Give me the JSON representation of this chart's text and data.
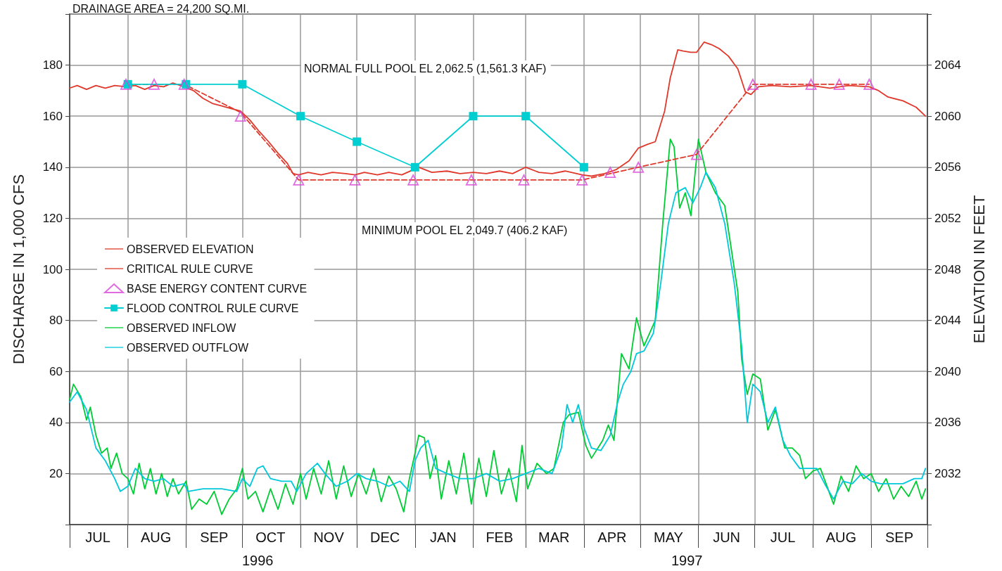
{
  "chart_data": {
    "type": "line",
    "ylabel": "DISCHARGE IN 1,000 CFS",
    "y2label": "ELEVATION IN FEET",
    "annotations": [
      "DRAINAGE AREA = 24,200 SQ.MI.",
      "NORMAL FULL POOL EL 2,062.5 (1,561.3 KAF)",
      "MINIMUM POOL EL 2,049.7 (406.2 KAF)",
      "1996",
      "1997"
    ],
    "xlim": [
      "1996-07-01",
      "1997-10-01"
    ],
    "xticks": [
      {
        "value": "1996-07-01",
        "label": null
      },
      {
        "value": "1996-07-16",
        "label": "JUL"
      },
      {
        "value": "1996-08-01",
        "label": null
      },
      {
        "value": "1996-08-16",
        "label": "AUG"
      },
      {
        "value": "1996-09-01",
        "label": null
      },
      {
        "value": "1996-09-16",
        "label": "SEP"
      },
      {
        "value": "1996-10-01",
        "label": null
      },
      {
        "value": "1996-10-16",
        "label": "OCT"
      },
      {
        "value": "1996-11-01",
        "label": null
      },
      {
        "value": "1996-11-16",
        "label": "NOV"
      },
      {
        "value": "1996-12-01",
        "label": null
      },
      {
        "value": "1996-12-16",
        "label": "DEC"
      },
      {
        "value": "1997-01-01",
        "label": null
      },
      {
        "value": "1997-01-16",
        "label": "JAN"
      },
      {
        "value": "1997-02-01",
        "label": null
      },
      {
        "value": "1997-02-15",
        "label": "FEB"
      },
      {
        "value": "1997-03-01",
        "label": null
      },
      {
        "value": "1997-03-16",
        "label": "MAR"
      },
      {
        "value": "1997-04-01",
        "label": null
      },
      {
        "value": "1997-04-16",
        "label": "APR"
      },
      {
        "value": "1997-05-01",
        "label": null
      },
      {
        "value": "1997-05-16",
        "label": "MAY"
      },
      {
        "value": "1997-06-01",
        "label": null
      },
      {
        "value": "1997-06-16",
        "label": "JUN"
      },
      {
        "value": "1997-07-01",
        "label": null
      },
      {
        "value": "1997-07-16",
        "label": "JUL"
      },
      {
        "value": "1997-08-01",
        "label": null
      },
      {
        "value": "1997-08-16",
        "label": "AUG"
      },
      {
        "value": "1997-09-01",
        "label": null
      },
      {
        "value": "1997-09-16",
        "label": "SEP"
      },
      {
        "value": "1997-10-01",
        "label": null
      }
    ],
    "ylim": [
      0,
      200
    ],
    "yticks": [
      {
        "value": 0,
        "label": null
      },
      20,
      40,
      60,
      80,
      100,
      120,
      140,
      160,
      180,
      {
        "value": 200,
        "label": null
      }
    ],
    "y2lim": [
      2028,
      2068
    ],
    "y2ticks": [
      {
        "value": 2028,
        "label": null
      },
      2032,
      2036,
      2040,
      2044,
      2048,
      2052,
      2056,
      2060,
      2064,
      {
        "value": 2068,
        "label": null
      }
    ],
    "grid": true,
    "legend": "left",
    "series": [
      {
        "name": "OBSERVED ELEVATION",
        "type": "line",
        "axis": "y2",
        "color": "#e0382b",
        "line_style": "solid",
        "marker": "none",
        "x": [
          "1996-07-01",
          "1996-07-05",
          "1996-07-10",
          "1996-07-15",
          "1996-07-20",
          "1996-07-25",
          "1996-07-31",
          "1996-08-05",
          "1996-08-10",
          "1996-08-15",
          "1996-08-20",
          "1996-08-25",
          "1996-08-31",
          "1996-09-05",
          "1996-09-10",
          "1996-09-15",
          "1996-09-20",
          "1996-09-25",
          "1996-09-30",
          "1996-10-05",
          "1996-10-10",
          "1996-10-15",
          "1996-10-20",
          "1996-10-25",
          "1996-10-28",
          "1996-10-31",
          "1996-11-05",
          "1996-11-12",
          "1996-11-18",
          "1996-11-25",
          "1996-11-30",
          "1996-12-05",
          "1996-12-12",
          "1996-12-18",
          "1996-12-25",
          "1996-12-31",
          "1997-01-03",
          "1997-01-10",
          "1997-01-18",
          "1997-01-25",
          "1997-02-01",
          "1997-02-08",
          "1997-02-15",
          "1997-02-22",
          "1997-03-01",
          "1997-03-08",
          "1997-03-15",
          "1997-03-22",
          "1997-03-31",
          "1997-04-05",
          "1997-04-12",
          "1997-04-18",
          "1997-04-25",
          "1997-04-30",
          "1997-05-05",
          "1997-05-09",
          "1997-05-14",
          "1997-05-17",
          "1997-05-21",
          "1997-05-24",
          "1997-05-28",
          "1997-05-31",
          "1997-06-04",
          "1997-06-08",
          "1997-06-12",
          "1997-06-17",
          "1997-06-22",
          "1997-06-26",
          "1997-06-29",
          "1997-07-03",
          "1997-07-10",
          "1997-07-20",
          "1997-07-31",
          "1997-08-10",
          "1997-08-20",
          "1997-08-31",
          "1997-09-05",
          "1997-09-10",
          "1997-09-18",
          "1997-09-25",
          "1997-09-30"
        ],
        "values": [
          2062.2,
          2062.4,
          2062.1,
          2062.4,
          2062.2,
          2062.4,
          2062.3,
          2062.4,
          2062.1,
          2062.4,
          2062.3,
          2062.6,
          2062.3,
          2062.0,
          2061.4,
          2061.0,
          2060.8,
          2060.6,
          2060.4,
          2059.7,
          2058.8,
          2058.0,
          2057.1,
          2056.3,
          2055.5,
          2055.4,
          2055.6,
          2055.4,
          2055.6,
          2055.5,
          2055.4,
          2055.6,
          2055.4,
          2055.6,
          2055.4,
          2055.8,
          2056.0,
          2055.6,
          2055.7,
          2055.5,
          2055.6,
          2055.5,
          2055.7,
          2055.5,
          2056.0,
          2055.6,
          2055.5,
          2055.7,
          2055.4,
          2055.3,
          2055.5,
          2055.8,
          2056.5,
          2057.5,
          2057.8,
          2058.0,
          2060.4,
          2063.0,
          2065.2,
          2065.1,
          2065.0,
          2065.0,
          2065.8,
          2065.6,
          2065.3,
          2064.7,
          2063.7,
          2061.9,
          2061.7,
          2062.3,
          2062.4,
          2062.3,
          2062.4,
          2062.2,
          2062.4,
          2062.3,
          2062.0,
          2061.5,
          2061.2,
          2060.7,
          2060.0
        ]
      },
      {
        "name": "CRITICAL RULE CURVE",
        "type": "line",
        "axis": "y2",
        "color": "#e0382b",
        "line_style": "dashed",
        "marker": "none",
        "x": [
          "1996-08-01",
          "1996-08-31",
          "1996-09-30",
          "1996-10-31",
          "1997-03-31",
          "1997-04-30",
          "1997-05-31",
          "1997-06-30",
          "1997-08-31"
        ],
        "values": [
          2062.5,
          2062.5,
          2060.3,
          2055,
          2055,
          2056,
          2057,
          2062.5,
          2062.5
        ]
      },
      {
        "name": "BASE ENERGY CONTENT CURVE",
        "type": "scatter",
        "axis": "y2",
        "color": "#d845d8",
        "marker": "triangle",
        "x": [
          "1996-07-31",
          "1996-08-15",
          "1996-08-31",
          "1996-09-30",
          "1996-10-31",
          "1996-11-30",
          "1996-12-31",
          "1997-01-31",
          "1997-02-28",
          "1997-03-31",
          "1997-04-15",
          "1997-04-30",
          "1997-05-31",
          "1997-06-30",
          "1997-07-31",
          "1997-08-15",
          "1997-08-31"
        ],
        "values": [
          2062.5,
          2062.5,
          2062.5,
          2060,
          2055,
          2055,
          2055,
          2055,
          2055,
          2055,
          2055.6,
          2056,
          2057,
          2062.5,
          2062.5,
          2062.5,
          2062.5
        ]
      },
      {
        "name": "FLOOD CONTROL RULE CURVE",
        "type": "line",
        "axis": "y2",
        "color": "#00ced1",
        "line_style": "solid",
        "marker": "square",
        "x": [
          "1996-08-01",
          "1996-09-01",
          "1996-10-01",
          "1996-11-01",
          "1996-12-01",
          "1997-01-01",
          "1997-02-01",
          "1997-03-01",
          "1997-04-01"
        ],
        "values": [
          2062.5,
          2062.5,
          2062.5,
          2060,
          2058,
          2056,
          2060,
          2060,
          2056
        ]
      },
      {
        "name": "OBSERVED INFLOW",
        "type": "line",
        "color": "#00cc33",
        "line_style": "solid",
        "marker": "none",
        "x": [
          "1996-07-01",
          "1996-07-03",
          "1996-07-07",
          "1996-07-10",
          "1996-07-12",
          "1996-07-15",
          "1996-07-18",
          "1996-07-21",
          "1996-07-23",
          "1996-07-26",
          "1996-07-29",
          "1996-08-01",
          "1996-08-04",
          "1996-08-07",
          "1996-08-10",
          "1996-08-13",
          "1996-08-16",
          "1996-08-19",
          "1996-08-22",
          "1996-08-25",
          "1996-08-28",
          "1996-09-01",
          "1996-09-04",
          "1996-09-08",
          "1996-09-12",
          "1996-09-16",
          "1996-09-20",
          "1996-09-24",
          "1996-09-28",
          "1996-10-01",
          "1996-10-04",
          "1996-10-08",
          "1996-10-12",
          "1996-10-16",
          "1996-10-20",
          "1996-10-24",
          "1996-10-28",
          "1996-11-01",
          "1996-11-04",
          "1996-11-08",
          "1996-11-12",
          "1996-11-16",
          "1996-11-20",
          "1996-11-24",
          "1996-11-28",
          "1996-12-02",
          "1996-12-06",
          "1996-12-10",
          "1996-12-14",
          "1996-12-18",
          "1996-12-22",
          "1996-12-26",
          "1996-12-29",
          "1997-01-01",
          "1997-01-03",
          "1997-01-06",
          "1997-01-09",
          "1997-01-12",
          "1997-01-15",
          "1997-01-19",
          "1997-01-23",
          "1997-01-27",
          "1997-01-31",
          "1997-02-04",
          "1997-02-08",
          "1997-02-12",
          "1997-02-16",
          "1997-02-20",
          "1997-02-24",
          "1997-02-27",
          "1997-03-02",
          "1997-03-07",
          "1997-03-12",
          "1997-03-16",
          "1997-03-21",
          "1997-03-24",
          "1997-03-29",
          "1997-04-02",
          "1997-04-05",
          "1997-04-11",
          "1997-04-14",
          "1997-04-17",
          "1997-04-21",
          "1997-04-25",
          "1997-04-29",
          "1997-05-03",
          "1997-05-09",
          "1997-05-13",
          "1997-05-17",
          "1997-05-19",
          "1997-05-22",
          "1997-05-25",
          "1997-05-28",
          "1997-06-01",
          "1997-06-05",
          "1997-06-10",
          "1997-06-15",
          "1997-06-22",
          "1997-06-24",
          "1997-06-27",
          "1997-06-30",
          "1997-07-04",
          "1997-07-08",
          "1997-07-12",
          "1997-07-17",
          "1997-07-21",
          "1997-07-25",
          "1997-07-28",
          "1997-08-01",
          "1997-08-05",
          "1997-08-09",
          "1997-08-12",
          "1997-08-16",
          "1997-08-20",
          "1997-08-24",
          "1997-08-28",
          "1997-09-01",
          "1997-09-05",
          "1997-09-09",
          "1997-09-13",
          "1997-09-17",
          "1997-09-21",
          "1997-09-25",
          "1997-09-28",
          "1997-09-30"
        ],
        "values": [
          49,
          55,
          50,
          41,
          46,
          35,
          28,
          30,
          22,
          28,
          20,
          18,
          12,
          24,
          14,
          22,
          12,
          20,
          11,
          18,
          12,
          17,
          6,
          10,
          8,
          13,
          4,
          10,
          14,
          22,
          10,
          13,
          5,
          14,
          6,
          16,
          8,
          20,
          10,
          22,
          12,
          25,
          10,
          23,
          11,
          20,
          12,
          22,
          9,
          19,
          14,
          5,
          18,
          28,
          35,
          34,
          18,
          27,
          10,
          25,
          12,
          28,
          8,
          26,
          11,
          29,
          12,
          22,
          9,
          31,
          14,
          24,
          20,
          22,
          40,
          43,
          44,
          31,
          26,
          33,
          39,
          33,
          67,
          61,
          81,
          70,
          80,
          118,
          151,
          148,
          124,
          130,
          121,
          151,
          138,
          130,
          125,
          91,
          65,
          51,
          59,
          57,
          37,
          45,
          30,
          30,
          27,
          18,
          21,
          22,
          14,
          8,
          19,
          13,
          23,
          18,
          20,
          13,
          18,
          10,
          15,
          11,
          17,
          10,
          14
        ]
      },
      {
        "name": "OBSERVED OUTFLOW",
        "type": "line",
        "color": "#00c8dc",
        "line_style": "solid",
        "marker": "none",
        "x": [
          "1996-07-01",
          "1996-07-05",
          "1996-07-10",
          "1996-07-15",
          "1996-07-20",
          "1996-07-25",
          "1996-07-28",
          "1996-08-01",
          "1996-08-05",
          "1996-08-10",
          "1996-08-15",
          "1996-08-20",
          "1996-08-25",
          "1996-08-31",
          "1996-09-02",
          "1996-09-10",
          "1996-09-20",
          "1996-09-28",
          "1996-10-01",
          "1996-10-05",
          "1996-10-09",
          "1996-10-12",
          "1996-10-16",
          "1996-10-22",
          "1996-10-27",
          "1996-10-30",
          "1996-11-04",
          "1996-11-10",
          "1996-11-14",
          "1996-11-20",
          "1996-11-26",
          "1996-12-01",
          "1996-12-06",
          "1996-12-12",
          "1996-12-18",
          "1996-12-24",
          "1996-12-29",
          "1997-01-01",
          "1997-01-04",
          "1997-01-08",
          "1997-01-12",
          "1997-01-18",
          "1997-01-25",
          "1997-02-01",
          "1997-02-08",
          "1997-02-15",
          "1997-02-22",
          "1997-03-01",
          "1997-03-08",
          "1997-03-15",
          "1997-03-20",
          "1997-03-23",
          "1997-03-26",
          "1997-03-29",
          "1997-04-01",
          "1997-04-05",
          "1997-04-10",
          "1997-04-15",
          "1997-04-19",
          "1997-04-22",
          "1997-04-26",
          "1997-04-29",
          "1997-05-03",
          "1997-05-08",
          "1997-05-12",
          "1997-05-16",
          "1997-05-20",
          "1997-05-25",
          "1997-05-29",
          "1997-06-02",
          "1997-06-05",
          "1997-06-10",
          "1997-06-15",
          "1997-06-20",
          "1997-06-24",
          "1997-06-27",
          "1997-06-30",
          "1997-07-04",
          "1997-07-08",
          "1997-07-12",
          "1997-07-16",
          "1997-07-20",
          "1997-07-25",
          "1997-07-30",
          "1997-08-03",
          "1997-08-08",
          "1997-08-12",
          "1997-08-17",
          "1997-08-22",
          "1997-08-27",
          "1997-09-01",
          "1997-09-06",
          "1997-09-12",
          "1997-09-18",
          "1997-09-24",
          "1997-09-28",
          "1997-09-30"
        ],
        "values": [
          48,
          52,
          45,
          30,
          25,
          18,
          13,
          15,
          22,
          18,
          17,
          18,
          15,
          16,
          13,
          14,
          14,
          13,
          18,
          15,
          22,
          23,
          18,
          17,
          17,
          13,
          20,
          24,
          20,
          15,
          17,
          20,
          18,
          17,
          15,
          17,
          13,
          25,
          30,
          33,
          22,
          20,
          18,
          18,
          20,
          17,
          18,
          20,
          22,
          20,
          30,
          47,
          40,
          47,
          38,
          30,
          29,
          35,
          48,
          55,
          60,
          67,
          68,
          75,
          95,
          118,
          130,
          132,
          126,
          132,
          138,
          132,
          118,
          95,
          70,
          40,
          55,
          52,
          40,
          46,
          33,
          27,
          22,
          22,
          22,
          15,
          10,
          17,
          16,
          20,
          17,
          16,
          16,
          16,
          18,
          18,
          22
        ]
      }
    ]
  }
}
